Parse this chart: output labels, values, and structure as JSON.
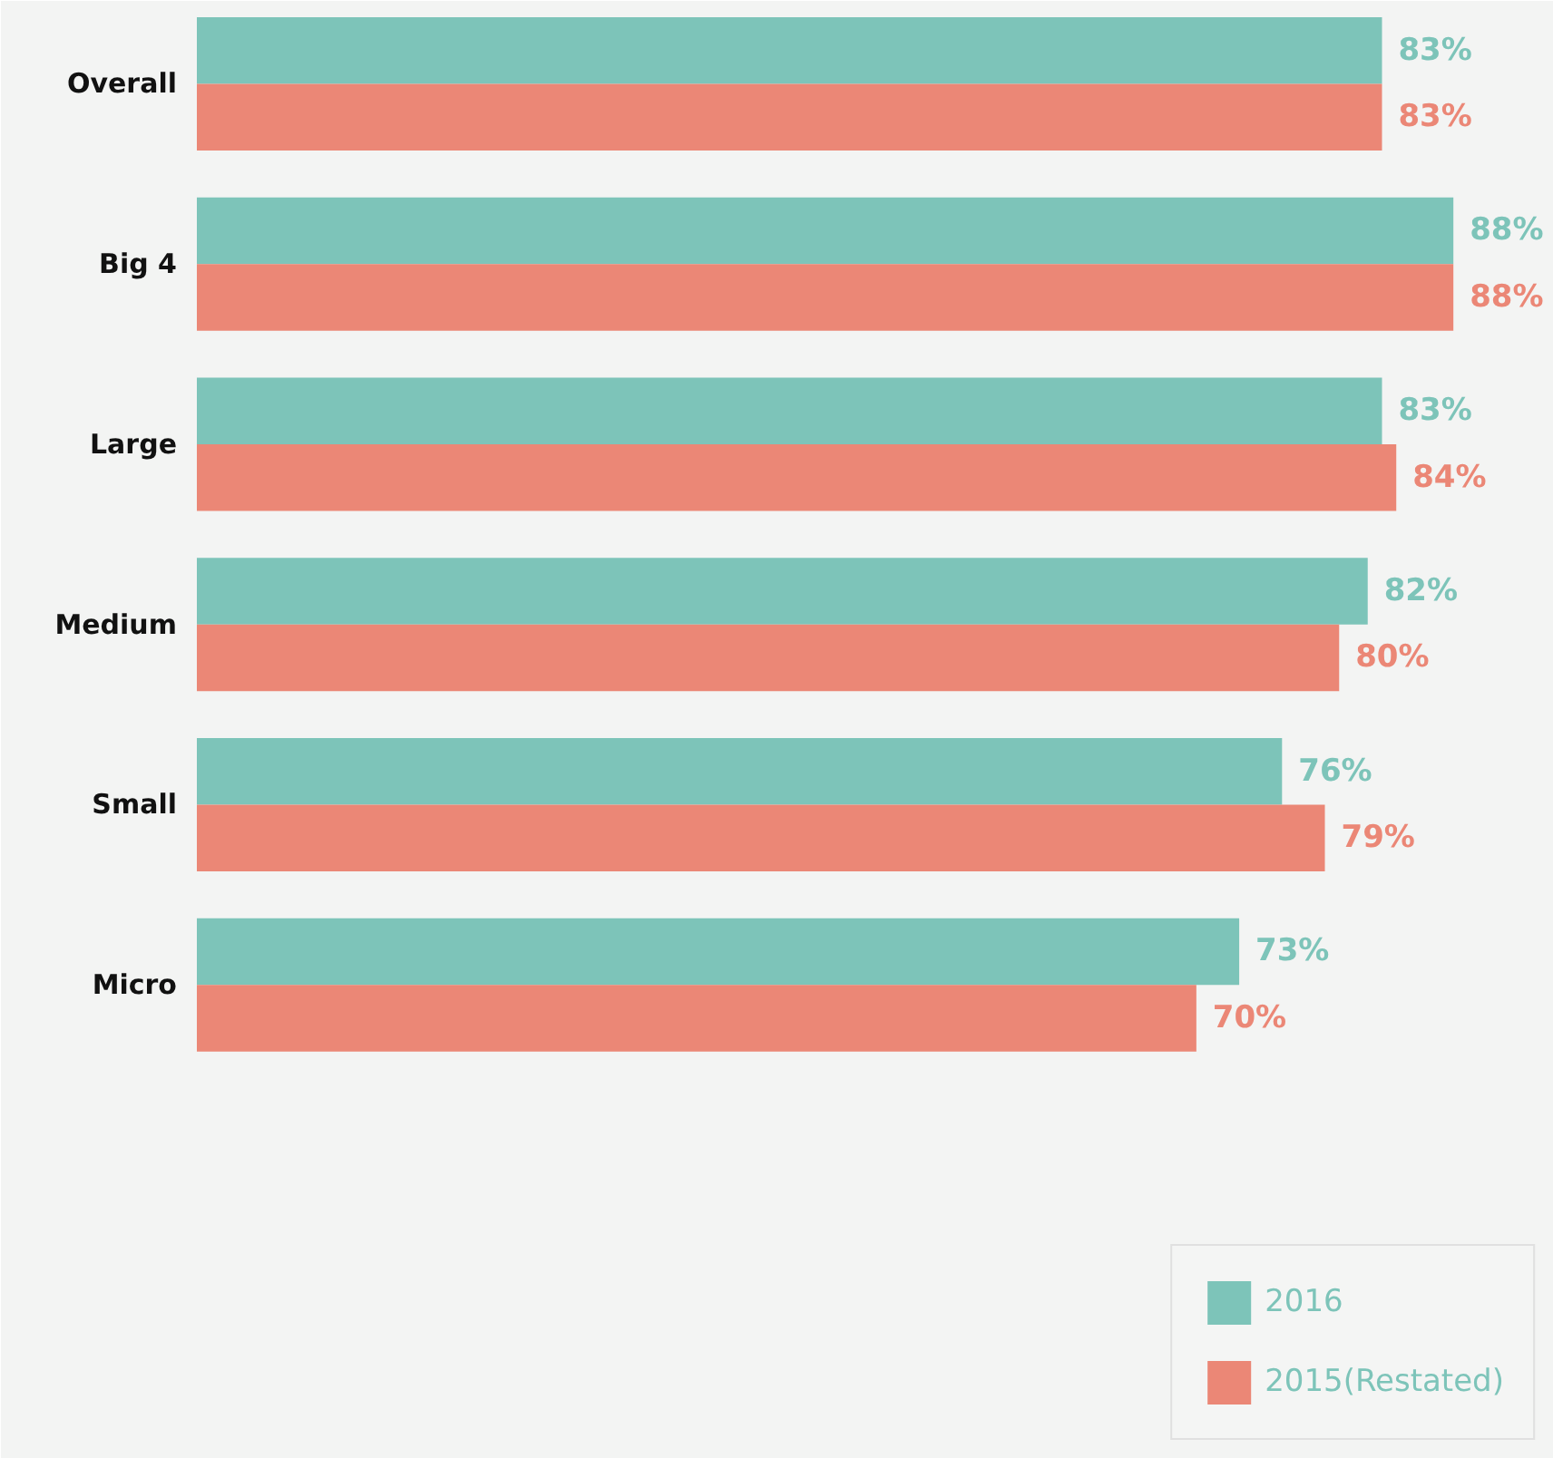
{
  "chart_data": {
    "type": "bar",
    "orientation": "horizontal",
    "categories": [
      "Overall",
      "Big 4",
      "Large",
      "Medium",
      "Small",
      "Micro"
    ],
    "series": [
      {
        "name": "2016",
        "color": "#7dc4b9",
        "values": [
          83,
          88,
          83,
          82,
          76,
          73
        ],
        "value_labels": [
          "83%",
          "88%",
          "83%",
          "82%",
          "76%",
          "73%"
        ]
      },
      {
        "name": "2015(Restated)",
        "color": "#eb8776",
        "values": [
          83,
          88,
          84,
          80,
          79,
          70
        ],
        "value_labels": [
          "83%",
          "88%",
          "84%",
          "80%",
          "79%",
          "70%"
        ]
      }
    ],
    "legend": "bottom right",
    "grid": false
  }
}
